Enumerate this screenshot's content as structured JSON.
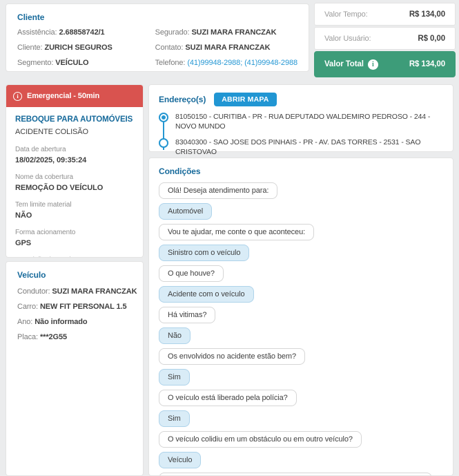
{
  "client_card": {
    "title": "Cliente",
    "left_fields": [
      {
        "label": "Assistência:",
        "value": "2.68858742/1"
      },
      {
        "label": "Cliente:",
        "value": "ZURICH SEGUROS"
      },
      {
        "label": "Segmento:",
        "value": "VEÍCULO"
      }
    ],
    "right_fields": [
      {
        "label": "Segurado:",
        "value": "SUZI MARA FRANCZAK"
      },
      {
        "label": "Contato:",
        "value": "SUZI MARA FRANCZAK"
      },
      {
        "label": "Telefone:",
        "value": "(41)99948-2988; (41)99948-2988"
      }
    ]
  },
  "totals": {
    "rows": [
      {
        "label": "Valor Tempo:",
        "value": "R$ 134,00"
      },
      {
        "label": "Valor Usuário:",
        "value": "R$ 0,00"
      }
    ],
    "total": {
      "label": "Valor Total",
      "value": "R$ 134,00"
    },
    "colors": {
      "total_green": "#3d9c79"
    }
  },
  "service_card": {
    "banner": {
      "label": "Emergencial - 50min",
      "color": "#d9534f",
      "icon": "info-circle"
    },
    "service_name": "REBOQUE PARA AUTOMÓVEIS",
    "service_type": "ACIDENTE COLISÃO",
    "details": [
      {
        "label": "Data de abertura",
        "value": "18/02/2025, 09:35:24"
      },
      {
        "label": "Nome da cobertura",
        "value": "REMOÇÃO DO VEÍCULO"
      },
      {
        "label": "Tem limite material",
        "value": "NÃO"
      },
      {
        "label": "Forma acionamento",
        "value": "GPS"
      },
      {
        "label": "Descrição do serviço",
        "value": "."
      }
    ]
  },
  "vehicle_card": {
    "title": "Veículo",
    "fields": [
      {
        "label": "Condutor:",
        "value": "SUZI MARA FRANCZAK"
      },
      {
        "label": "Carro:",
        "value": "NEW FIT PERSONAL 1.5"
      },
      {
        "label": "Ano:",
        "value": "Não informado"
      },
      {
        "label": "Placa:",
        "value": "***2G55"
      }
    ]
  },
  "address_card": {
    "title": "Endereço(s)",
    "open_map_button": "ABRIR MAPA",
    "button_color": "#2196d3",
    "addresses": [
      {
        "text": "81050150 - CURITIBA - PR - RUA DEPUTADO WALDEMIRO PEDROSO - 244 - NOVO MUNDO",
        "selected": true
      },
      {
        "text": "83040300 - SAO JOSE DOS PINHAIS - PR - AV. DAS TORRES - 2531 - SAO CRISTOVAO",
        "selected": false
      }
    ]
  },
  "chat_card": {
    "title": "Condições",
    "messages": [
      {
        "role": "question",
        "text": "Olá! Deseja atendimento para:"
      },
      {
        "role": "answer",
        "text": "Automóvel"
      },
      {
        "role": "question",
        "text": "Vou te ajudar, me conte o que aconteceu:"
      },
      {
        "role": "answer",
        "text": "Sinistro com o veículo"
      },
      {
        "role": "question",
        "text": "O que houve?"
      },
      {
        "role": "answer",
        "text": "Acidente com o veículo"
      },
      {
        "role": "question",
        "text": "Há vitimas?"
      },
      {
        "role": "answer",
        "text": "Não"
      },
      {
        "role": "question",
        "text": "Os envolvidos no acidente estão bem?"
      },
      {
        "role": "answer",
        "text": "Sim"
      },
      {
        "role": "question",
        "text": "O veículo está liberado pela polícia?"
      },
      {
        "role": "answer",
        "text": "Sim"
      },
      {
        "role": "question",
        "text": "O veículo colidiu em um obstáculo ou em outro veículo?"
      },
      {
        "role": "answer",
        "text": "Veículo"
      },
      {
        "role": "question",
        "text": "",
        "partial": true
      }
    ]
  }
}
